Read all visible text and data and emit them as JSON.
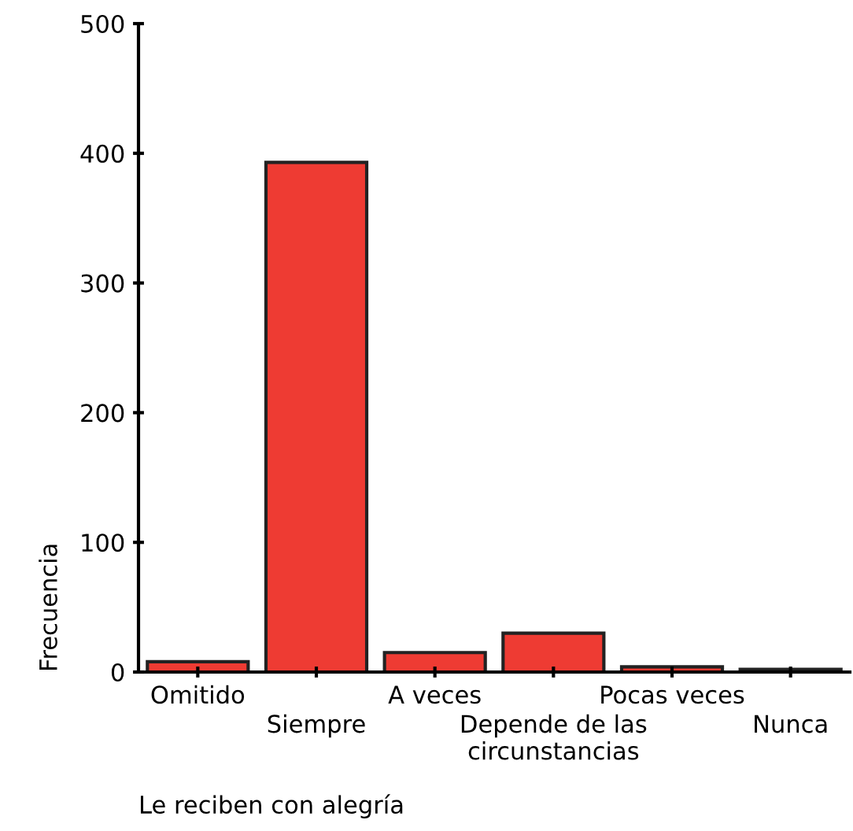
{
  "chart_data": {
    "type": "bar",
    "xlabel": "Le reciben con alegría",
    "ylabel": "Frecuencia",
    "categories": [
      "Omitido",
      "Siempre",
      "A veces",
      "Depende de las\ncircunstancias",
      "Pocas veces",
      "Nunca"
    ],
    "values": [
      8,
      393,
      15,
      30,
      4,
      2
    ],
    "color": "#ee3b33",
    "ylim": [
      0,
      500
    ],
    "yticks": [
      0,
      100,
      200,
      300,
      400,
      500
    ],
    "grid": false
  }
}
